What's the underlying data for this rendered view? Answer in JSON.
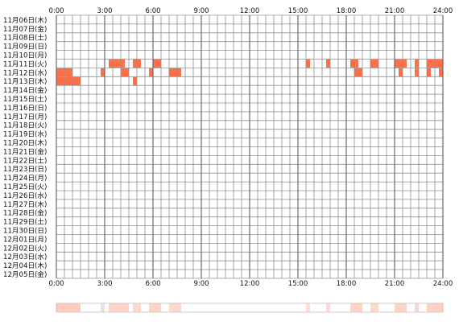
{
  "chart_data": {
    "type": "heatmap",
    "x_range_hours": [
      0,
      24
    ],
    "x_ticks": [
      "0:00",
      "3:00",
      "6:00",
      "9:00",
      "12:00",
      "15:00",
      "18:00",
      "21:00",
      "24:00"
    ],
    "rows": [
      "11月06日(木)",
      "11月07日(金)",
      "11月08日(土)",
      "11月09日(日)",
      "11月10日(月)",
      "11月11日(火)",
      "11月12日(水)",
      "11月13日(木)",
      "11月14日(金)",
      "11月15日(土)",
      "11月16日(日)",
      "11月17日(月)",
      "11月18日(火)",
      "11月19日(水)",
      "11月20日(木)",
      "11月21日(金)",
      "11月22日(土)",
      "11月23日(日)",
      "11月24日(月)",
      "11月25日(火)",
      "11月26日(水)",
      "11月27日(木)",
      "11月28日(金)",
      "11月29日(土)",
      "11月30日(日)",
      "12月01日(月)",
      "12月02日(火)",
      "12月03日(水)",
      "12月04日(木)",
      "12月05日(金)"
    ],
    "grid": true,
    "cells": [
      {
        "row": 5,
        "start": 3.25,
        "end": 4.25
      },
      {
        "row": 5,
        "start": 4.75,
        "end": 5.25
      },
      {
        "row": 5,
        "start": 6.0,
        "end": 6.5
      },
      {
        "row": 5,
        "start": 15.5,
        "end": 15.75
      },
      {
        "row": 5,
        "start": 16.75,
        "end": 17.0
      },
      {
        "row": 5,
        "start": 18.25,
        "end": 18.75
      },
      {
        "row": 5,
        "start": 19.5,
        "end": 20.0
      },
      {
        "row": 5,
        "start": 21.0,
        "end": 21.75
      },
      {
        "row": 5,
        "start": 22.25,
        "end": 22.5
      },
      {
        "row": 5,
        "start": 23.0,
        "end": 24.0
      },
      {
        "row": 6,
        "start": 0.0,
        "end": 1.0
      },
      {
        "row": 6,
        "start": 2.75,
        "end": 3.0
      },
      {
        "row": 6,
        "start": 4.0,
        "end": 4.5
      },
      {
        "row": 6,
        "start": 5.75,
        "end": 6.0
      },
      {
        "row": 6,
        "start": 7.0,
        "end": 7.75
      },
      {
        "row": 6,
        "start": 18.5,
        "end": 19.0
      },
      {
        "row": 6,
        "start": 21.25,
        "end": 21.5
      },
      {
        "row": 6,
        "start": 22.25,
        "end": 22.5
      },
      {
        "row": 6,
        "start": 23.0,
        "end": 23.25
      },
      {
        "row": 6,
        "start": 23.75,
        "end": 24.0
      },
      {
        "row": 7,
        "start": 0.0,
        "end": 1.5
      },
      {
        "row": 7,
        "start": 4.75,
        "end": 5.0
      }
    ],
    "summary_strip": [
      {
        "start": 0.0,
        "end": 1.5,
        "level": 0.8
      },
      {
        "start": 2.75,
        "end": 3.0,
        "level": 0.4
      },
      {
        "start": 3.25,
        "end": 4.5,
        "level": 0.6
      },
      {
        "start": 4.75,
        "end": 5.25,
        "level": 0.5
      },
      {
        "start": 5.75,
        "end": 6.5,
        "level": 0.6
      },
      {
        "start": 7.0,
        "end": 7.75,
        "level": 0.5
      },
      {
        "start": 15.5,
        "end": 15.75,
        "level": 0.4
      },
      {
        "start": 16.75,
        "end": 17.0,
        "level": 0.4
      },
      {
        "start": 18.25,
        "end": 19.0,
        "level": 0.6
      },
      {
        "start": 19.5,
        "end": 20.0,
        "level": 0.5
      },
      {
        "start": 21.0,
        "end": 21.75,
        "level": 0.6
      },
      {
        "start": 22.25,
        "end": 22.5,
        "level": 0.5
      },
      {
        "start": 23.0,
        "end": 24.0,
        "level": 0.7
      }
    ],
    "colors": {
      "cell_fill": "#ff6e47",
      "grid_line": "#909090",
      "label_text": "#111111",
      "summary_base": "#ff6e47",
      "summary_border": "#c0c0c0"
    }
  }
}
